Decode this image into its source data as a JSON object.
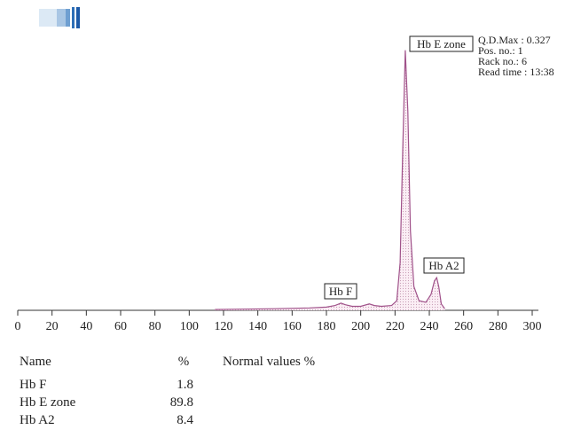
{
  "chart_data": {
    "type": "line",
    "x": [
      115,
      150,
      170,
      180,
      185,
      188.5,
      191,
      195,
      200,
      205,
      208,
      212,
      218,
      221,
      223,
      224.5,
      226,
      227.5,
      229,
      231,
      234,
      238,
      241,
      243,
      244.3,
      245.5,
      247,
      249
    ],
    "values": [
      0.001,
      0.002,
      0.003,
      0.004,
      0.006,
      0.009,
      0.007,
      0.005,
      0.005,
      0.008,
      0.006,
      0.005,
      0.006,
      0.012,
      0.06,
      0.2,
      0.327,
      0.25,
      0.1,
      0.03,
      0.012,
      0.01,
      0.02,
      0.037,
      0.041,
      0.03,
      0.008,
      0.002
    ],
    "color": "#a0528a",
    "xlim": [
      0,
      300
    ],
    "ylim": [
      0,
      0.35
    ],
    "xticks": [
      0,
      20,
      40,
      60,
      80,
      100,
      120,
      140,
      160,
      180,
      200,
      220,
      240,
      260,
      280,
      300
    ],
    "annotations": [
      "Hb E zone",
      "Hb F",
      "Hb A2"
    ],
    "info": [
      "Q.D.Max : 0.327",
      "Pos. no.: 1",
      "Rack no.: 6",
      "Read time : 13:38"
    ]
  },
  "table": {
    "header": [
      "Name",
      "%",
      "Normal values %"
    ],
    "rows": [
      [
        "Hb F",
        1.8
      ],
      [
        "Hb E zone",
        89.8
      ],
      [
        "Hb A2",
        8.4
      ]
    ]
  }
}
